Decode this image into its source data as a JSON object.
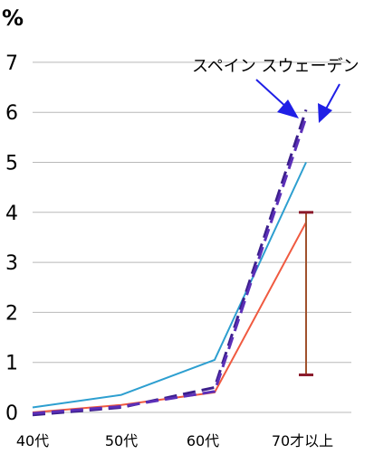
{
  "chart_data": {
    "type": "line",
    "title": "",
    "unit_label": "%",
    "categories": [
      "40代",
      "50代",
      "60代",
      "70才以上"
    ],
    "ylim": [
      0,
      7
    ],
    "yticks": [
      0,
      1,
      2,
      3,
      4,
      5,
      6,
      7
    ],
    "grid": true,
    "series": [
      {
        "color": "#2d9fd0",
        "style": "solid",
        "values": [
          0.1,
          0.35,
          1.05,
          5.0
        ]
      },
      {
        "color": "#f05a40",
        "style": "solid",
        "values": [
          0.0,
          0.15,
          0.4,
          3.8
        ]
      },
      {
        "color": "#3c1f8c",
        "style": "dashed",
        "values": [
          -0.05,
          0.1,
          0.5,
          6.05
        ]
      },
      {
        "color": "#5b2fb8",
        "style": "dashed",
        "values": [
          -0.02,
          0.12,
          0.42,
          5.9
        ]
      }
    ],
    "error_bar": {
      "category": "70才以上",
      "low": 0.75,
      "high": 4.0,
      "color": "#a0522d"
    },
    "annotation": {
      "text": "スペイン スウェーデン",
      "arrow_color": "#1f1fe6"
    }
  }
}
